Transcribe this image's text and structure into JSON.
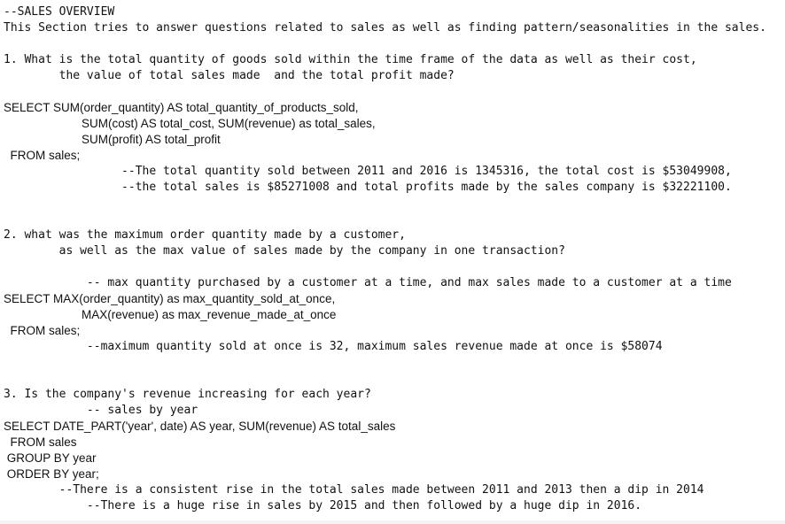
{
  "editor": {
    "lines": [
      "--SALES OVERVIEW",
      "This Section tries to answer questions related to sales as well as finding pattern/seasonalities in the sales.",
      "1. What is the total quantity of goods sold within the time frame of the data as well as their cost,",
      "        the value of total sales made  and the total profit made?",
      "SELECT SUM(order_quantity) AS total_quantity_of_products_sold,",
      "SUM(cost) AS total_cost, SUM(revenue) as total_sales,",
      "SUM(profit) AS total_profit",
      "  FROM sales;",
      "                 --The total quantity sold between 2011 and 2016 is 1345316, the total cost is $53049908,",
      "                 --the total sales is $85271008 and total profits made by the sales company is $32221100.",
      "2. what was the maximum order quantity made by a customer,",
      "        as well as the max value of sales made by the company in one transaction?",
      "            -- max quantity purchased by a customer at a time, and max sales made to a customer at a time",
      "SELECT MAX(order_quantity) as max_quantity_sold_at_once,",
      "MAX(revenue) as max_revenue_made_at_once",
      "  FROM sales;",
      "            --maximum quantity sold at once is 32, maximum sales revenue made at once is $58074",
      "3. Is the company's revenue increasing for each year?",
      "            -- sales by year",
      "SELECT DATE_PART('year', date) AS year, SUM(revenue) AS total_sales",
      "  FROM sales",
      " GROUP BY year",
      " ORDER BY year;",
      "        --There is a consistent rise in the total sales made between 2011 and 2013 then a dip in 2014",
      "            --There is a huge rise in sales by 2015 and then followed by a huge dip in 2016."
    ]
  }
}
